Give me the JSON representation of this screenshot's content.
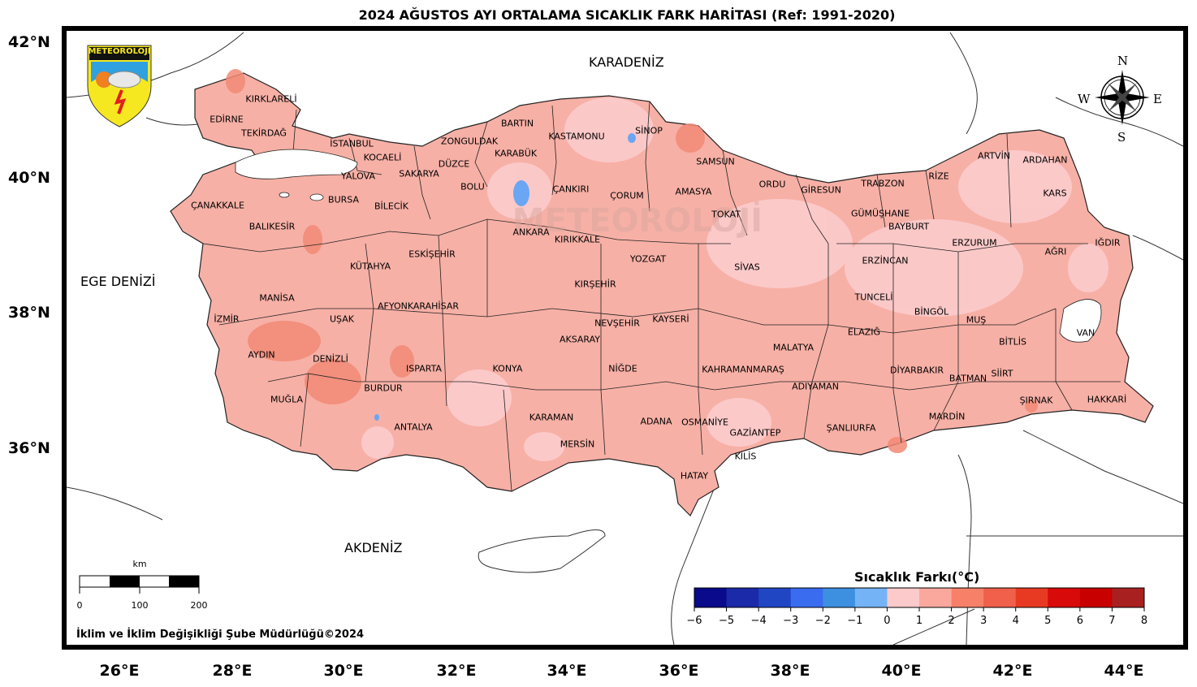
{
  "title": "2024 AĞUSTOS AYI ORTALAMA SICAKLIK FARK HARİTASI (Ref: 1991-2020)",
  "logo_text": "METEOROLOJİ",
  "watermark_text": "METEOROLOJİ",
  "seas": {
    "black_sea": "KARADENİZ",
    "aegean": "EGE DENİZİ",
    "mediterranean": "AKDENİZ"
  },
  "lat_labels": [
    "42°N",
    "40°N",
    "38°N",
    "36°N"
  ],
  "lon_labels": [
    "26°E",
    "28°E",
    "30°E",
    "32°E",
    "34°E",
    "36°E",
    "38°E",
    "40°E",
    "42°E",
    "44°E"
  ],
  "compass": {
    "n": "N",
    "s": "S",
    "e": "E",
    "w": "W",
    "icon": "compass-rose-icon"
  },
  "scale_bar": {
    "unit": "km",
    "ticks": [
      "0",
      "100",
      "200"
    ]
  },
  "footer": "İklim ve İklim Değişikliği Şube Müdürlüğü©2024",
  "legend": {
    "title": "Sıcaklık Farkı(°C)",
    "ticks": [
      "−6",
      "−5",
      "−4",
      "−3",
      "−2",
      "−1",
      "0",
      "1",
      "2",
      "3",
      "4",
      "5",
      "6",
      "7",
      "8"
    ],
    "colors": [
      "#0a0a8c",
      "#1a2aa8",
      "#2146c4",
      "#3a6cf0",
      "#3d8fe0",
      "#74b4f6",
      "#fccaca",
      "#faa89e",
      "#f78068",
      "#f0604a",
      "#e83a22",
      "#d80a0a",
      "#c80000",
      "#a82020"
    ]
  },
  "provinces": [
    "EDİRNE",
    "KIRKLARELİ",
    "TEKİRDAĞ",
    "İSTANBUL",
    "KOCAELİ",
    "YALOVA",
    "SAKARYA",
    "DÜZCE",
    "ZONGULDAK",
    "BARTIN",
    "KARABÜK",
    "KASTAMONU",
    "SİNOP",
    "SAMSUN",
    "ÇANAKKALE",
    "BURSA",
    "BİLECİK",
    "BOLU",
    "ÇANKIRI",
    "ÇORUM",
    "AMASYA",
    "ORDU",
    "GİRESUN",
    "TRABZON",
    "RİZE",
    "ARTVİN",
    "ARDAHAN",
    "KARS",
    "BALIKESİR",
    "ESKİŞEHİR",
    "ANKARA",
    "KIRIKKALE",
    "TOKAT",
    "GÜMÜŞHANE",
    "BAYBURT",
    "ERZURUM",
    "AĞRI",
    "IĞDIR",
    "KÜTAHYA",
    "YOZGAT",
    "SİVAS",
    "ERZİNCAN",
    "MANİSA",
    "KIRŞEHİR",
    "TUNCELİ",
    "AFYONKARAHİSAR",
    "İZMİR",
    "UŞAK",
    "NEVŞEHİR",
    "KAYSERİ",
    "BİNGÖL",
    "MUŞ",
    "ELAZIĞ",
    "VAN",
    "AKSARAY",
    "AYDIN",
    "DENİZLİ",
    "MALATYA",
    "BİTLİS",
    "ISPARTA",
    "KONYA",
    "NİĞDE",
    "KAHRAMANMARAŞ",
    "DİYARBAKIR",
    "BATMAN",
    "SİİRT",
    "BURDUR",
    "ADIYAMAN",
    "MUĞLA",
    "ŞIRNAK",
    "HAKKARİ",
    "KARAMAN",
    "ADANA",
    "OSMANİYE",
    "MARDİN",
    "ANTALYA",
    "ŞANLIURFA",
    "GAZİANTEP",
    "MERSİN",
    "KİLİS",
    "HATAY"
  ]
}
